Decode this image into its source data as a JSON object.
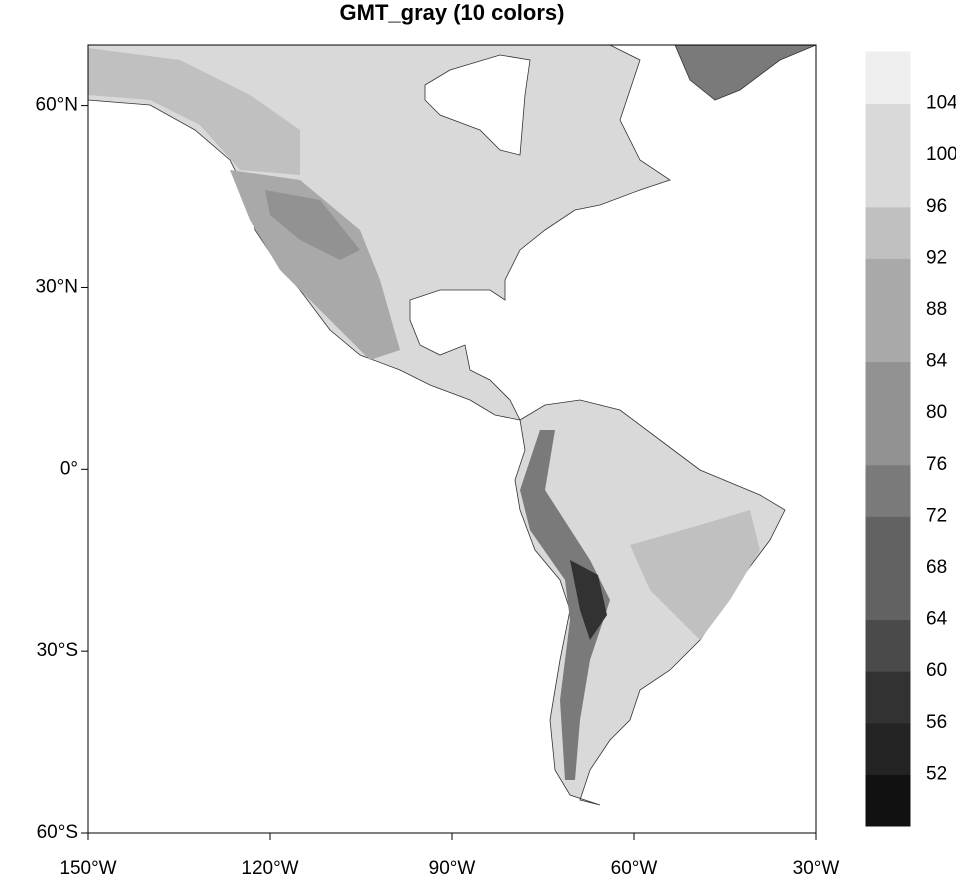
{
  "chart_data": {
    "type": "contour-map",
    "title": "GMT_gray (10 colors)",
    "xlim": [
      -150,
      -30
    ],
    "ylim": [
      -60,
      70
    ],
    "xticks": [
      {
        "value": -150,
        "label": "150°W"
      },
      {
        "value": -120,
        "label": "120°W"
      },
      {
        "value": -90,
        "label": "90°W"
      },
      {
        "value": -60,
        "label": "60°W"
      },
      {
        "value": -30,
        "label": "30°W"
      }
    ],
    "yticks": [
      {
        "value": -60,
        "label": "60°S"
      },
      {
        "value": -30,
        "label": "30°S"
      },
      {
        "value": 0,
        "label": "0°"
      },
      {
        "value": 30,
        "label": "30°N"
      },
      {
        "value": 60,
        "label": "60°N"
      }
    ],
    "levels": [
      52,
      56,
      60,
      64,
      68,
      72,
      76,
      80,
      84,
      88,
      92,
      96,
      100,
      104
    ],
    "colors": [
      "#111111",
      "#232323",
      "#323232",
      "#4a4a4a",
      "#626262",
      "#626262",
      "#7a7a7a",
      "#929292",
      "#929292",
      "#a9a9a9",
      "#a9a9a9",
      "#c0c0c0",
      "#d9d9d9",
      "#d9d9d9",
      "#efefef"
    ]
  }
}
